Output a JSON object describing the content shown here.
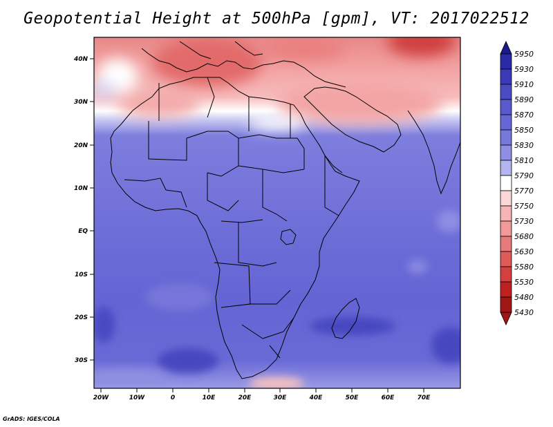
{
  "title": "Geopotential Height at 500hPa [gpm], VT: 2017022512",
  "credit": "GrADS: IGES/COLA",
  "axes": {
    "lat_ticks": [
      "40N",
      "30N",
      "20N",
      "10N",
      "EQ",
      "10S",
      "20S",
      "30S"
    ],
    "lon_ticks": [
      "20W",
      "10W",
      "0",
      "10E",
      "20E",
      "30E",
      "40E",
      "50E",
      "60E",
      "70E"
    ]
  },
  "colorbar": {
    "levels": [
      "5950",
      "5930",
      "5910",
      "5890",
      "5870",
      "5850",
      "5830",
      "5810",
      "5790",
      "5770",
      "5750",
      "5730",
      "5680",
      "5630",
      "5580",
      "5530",
      "5480",
      "5430"
    ],
    "colors": [
      "#1a1a8c",
      "#2a2aa8",
      "#3a3ab8",
      "#4b4bc4",
      "#5a5ad0",
      "#6666d6",
      "#7777dc",
      "#8e8ee4",
      "#b4b4ee",
      "#ffffff",
      "#fbd8d8",
      "#f7b4b4",
      "#f29a9a",
      "#e77a7a",
      "#e05a5a",
      "#d43f3f",
      "#bf2020",
      "#a01515"
    ]
  },
  "map_colors": {
    "south_blue": "#6a6ad4",
    "deep_blue": "#4646c0",
    "light_blue": "#8888e0",
    "white_band": "#ffffff",
    "pink": "#f2a6a6",
    "red": "#e06060",
    "dark_red": "#cc3434"
  }
}
